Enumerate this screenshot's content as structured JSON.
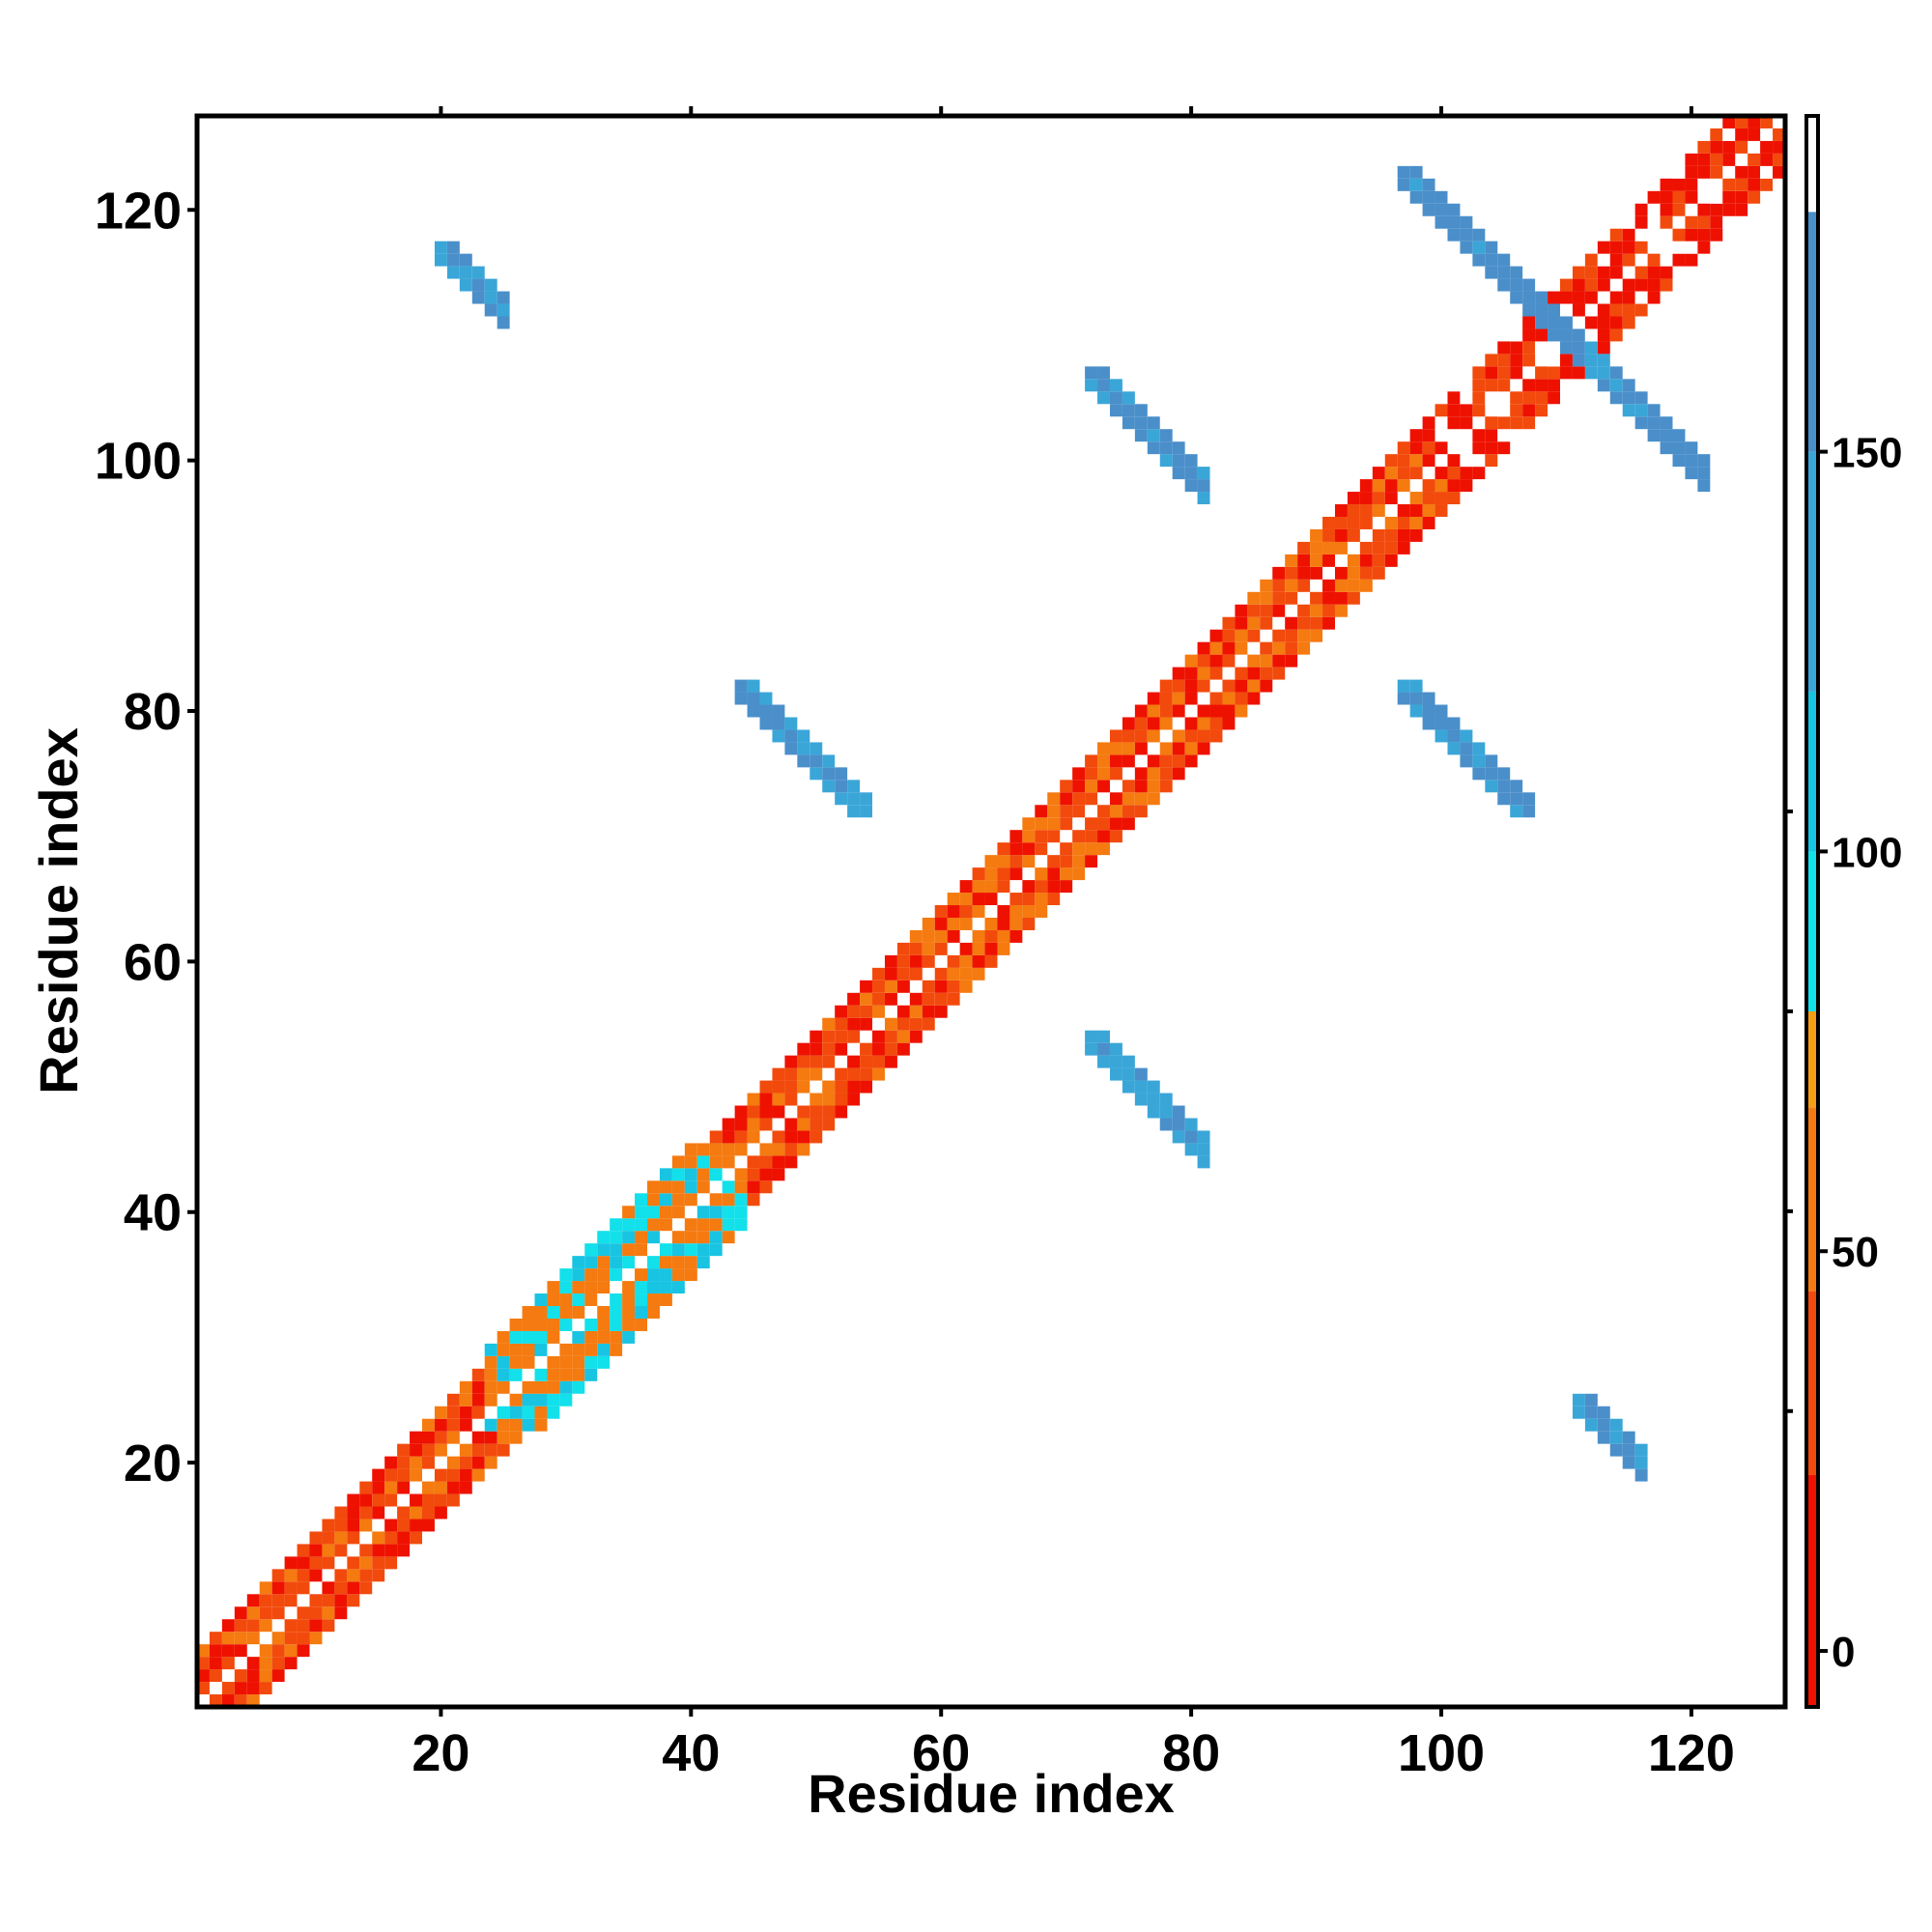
{
  "chart_data": {
    "type": "heatmap",
    "title": "",
    "xlabel": "Residue index",
    "ylabel": "Residue index",
    "xlim": [
      1,
      127
    ],
    "ylim": [
      1,
      127
    ],
    "xticks": [
      20,
      40,
      60,
      80,
      100,
      120
    ],
    "yticks": [
      20,
      40,
      60,
      80,
      100,
      120
    ],
    "colorbar": {
      "ticks": [
        0,
        50,
        100,
        150
      ],
      "range": [
        -7,
        192
      ],
      "bands": [
        {
          "from": -7,
          "to": 22,
          "color": "#ee1100"
        },
        {
          "from": 22,
          "to": 45,
          "color": "#f24a0c"
        },
        {
          "from": 45,
          "to": 68,
          "color": "#f57a10"
        },
        {
          "from": 68,
          "to": 80,
          "color": "#f59d14"
        },
        {
          "from": 80,
          "to": 100,
          "color": "#12e0ea"
        },
        {
          "from": 100,
          "to": 120,
          "color": "#18c4e2"
        },
        {
          "from": 120,
          "to": 150,
          "color": "#3aa6d8"
        },
        {
          "from": 150,
          "to": 180,
          "color": "#4a8fca"
        },
        {
          "from": 180,
          "to": 192,
          "color": "#ffffff"
        }
      ]
    },
    "segments": [
      {
        "region": "diagonal-main",
        "x": [
          1,
          127
        ],
        "y": [
          1,
          127
        ],
        "value": 30
      },
      {
        "region": "diagonal-helix-upper",
        "x": [
          99,
          127
        ],
        "y": [
          99,
          127
        ],
        "value": 10
      },
      {
        "region": "cluster",
        "x": [
          24,
          44
        ],
        "y": [
          23,
          45
        ],
        "value": 100
      },
      {
        "region": "antiparallel-a",
        "x": [
          20,
          25
        ],
        "y": [
          111,
          117
        ],
        "value": 155
      },
      {
        "region": "antiparallel-b",
        "x": [
          44,
          54
        ],
        "y": [
          72,
          82
        ],
        "value": 150
      },
      {
        "region": "antiparallel-c",
        "x": [
          72,
          81
        ],
        "y": [
          43,
          54
        ],
        "value": 140
      },
      {
        "region": "antiparallel-d",
        "x": [
          72,
          81
        ],
        "y": [
          97,
          107
        ],
        "value": 160
      },
      {
        "region": "antiparallel-e",
        "x": [
          97,
          107
        ],
        "y": [
          72,
          82
        ],
        "value": 160
      },
      {
        "region": "antiparallel-f",
        "x": [
          97,
          121
        ],
        "y": [
          97,
          123
        ],
        "value": 160
      },
      {
        "region": "antiparallel-g",
        "x": [
          111,
          116
        ],
        "y": [
          19,
          25
        ],
        "value": 155
      }
    ]
  }
}
